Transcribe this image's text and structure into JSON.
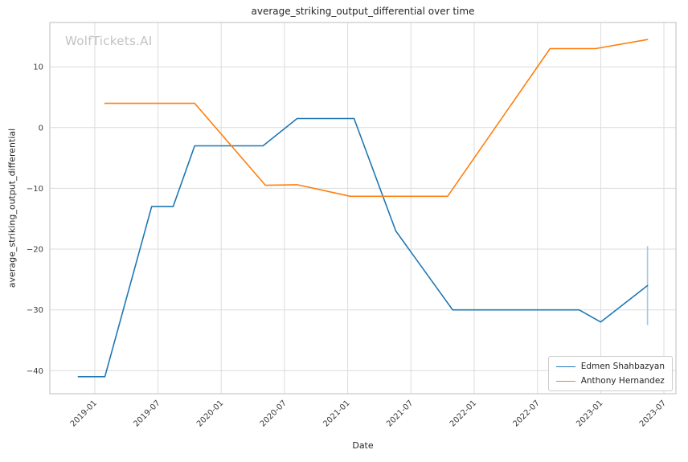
{
  "figure": {
    "title": "average_striking_output_differential over time",
    "watermark": "WolfTickets.AI"
  },
  "chart_data": {
    "type": "line",
    "title": "average_striking_output_differential over time",
    "xlabel": "Date",
    "ylabel": "average_striking_output_differential",
    "grid": true,
    "legend_position": "lower right",
    "x_unit": "decimal_year",
    "xlim": [
      2018.645,
      2023.595
    ],
    "ylim": [
      -43.8,
      17.3
    ],
    "x_ticks": [
      {
        "v": 2019.0,
        "label": "2019-01"
      },
      {
        "v": 2019.5,
        "label": "2019-07"
      },
      {
        "v": 2020.0,
        "label": "2020-01"
      },
      {
        "v": 2020.5,
        "label": "2020-07"
      },
      {
        "v": 2021.0,
        "label": "2021-01"
      },
      {
        "v": 2021.5,
        "label": "2021-07"
      },
      {
        "v": 2022.0,
        "label": "2022-01"
      },
      {
        "v": 2022.5,
        "label": "2022-07"
      },
      {
        "v": 2023.0,
        "label": "2023-01"
      },
      {
        "v": 2023.5,
        "label": "2023-07"
      }
    ],
    "y_ticks": [
      -40,
      -30,
      -20,
      -10,
      0,
      10
    ],
    "series": [
      {
        "name": "Edmen Shahbazyan",
        "color": "#1f77b4",
        "x": [
          2018.87,
          2019.08,
          2019.45,
          2019.62,
          2019.79,
          2020.33,
          2020.6,
          2021.05,
          2021.38,
          2021.83,
          2022.83,
          2023.0,
          2023.37
        ],
        "y": [
          -41,
          -41,
          -13,
          -13,
          -3,
          -3,
          1.5,
          1.5,
          -17,
          -30,
          -30,
          -32,
          -26
        ]
      },
      {
        "name": "Anthony Hernandez",
        "color": "#ff7f0e",
        "x": [
          2019.08,
          2019.79,
          2020.35,
          2020.6,
          2021.02,
          2021.79,
          2022.6,
          2022.96,
          2023.37
        ],
        "y": [
          4,
          4,
          -9.5,
          -9.4,
          -11.3,
          -11.3,
          13,
          13,
          14.5
        ]
      }
    ],
    "annotations": [
      {
        "type": "vertical-segment",
        "x": 2023.37,
        "y1": -19.5,
        "y2": -32.5,
        "color": "#9ecae1"
      }
    ]
  }
}
